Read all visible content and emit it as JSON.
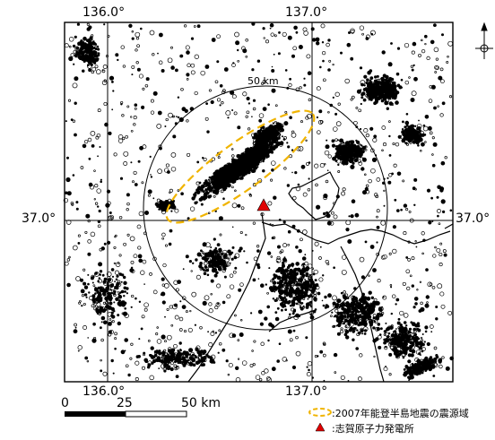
{
  "map": {
    "lon_labels_top": [
      "136.0°",
      "137.0°"
    ],
    "lon_labels_bottom": [
      "136.0°",
      "137.0°"
    ],
    "lat_label_left": "37.0°",
    "lat_label_right": "37.0°",
    "circle_label": "50 km",
    "colors": {
      "rupture_outline": "#f0b400",
      "plant_marker": "#e00000",
      "events": "#000000",
      "frame": "#000000"
    }
  },
  "scale_bar": {
    "labels": [
      "0",
      "25",
      "50 km"
    ]
  },
  "legend": {
    "rupture_zone": ":2007年能登半島地震の震源域",
    "power_plant": ":志賀原子力発電所"
  },
  "icons": {
    "north_arrow": "north-arrow-icon",
    "plant": "red-triangle-icon"
  }
}
